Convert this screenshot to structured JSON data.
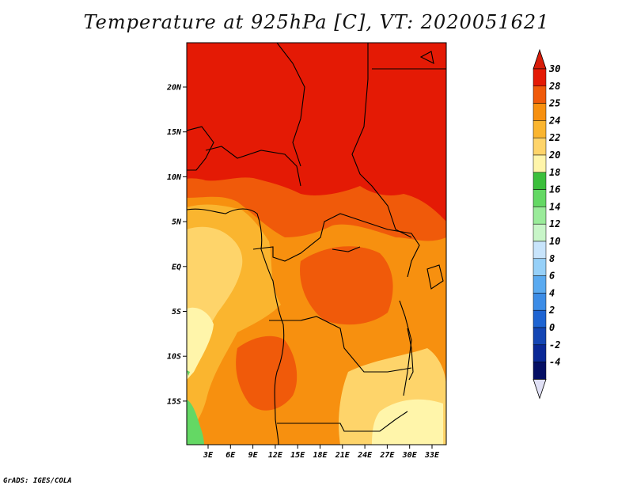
{
  "title": "Temperature at 925hPa [C], VT: 2020051621",
  "footer": "GrADS: IGES/COLA",
  "lat_labels": [
    "20N",
    "15N",
    "10N",
    "5N",
    "EQ",
    "5S",
    "10S",
    "15S"
  ],
  "lon_labels": [
    "3E",
    "6E",
    "9E",
    "12E",
    "15E",
    "18E",
    "21E",
    "24E",
    "27E",
    "30E",
    "33E"
  ],
  "colorbar": {
    "labels": [
      "30",
      "28",
      "25",
      "24",
      "22",
      "20",
      "18",
      "16",
      "14",
      "12",
      "10",
      "8",
      "6",
      "4",
      "2",
      "0",
      "-2",
      "-4"
    ],
    "colors": [
      "#e41a05",
      "#f05a0a",
      "#f7900f",
      "#fab52f",
      "#fed46a",
      "#fff5aa",
      "#3cbf3c",
      "#64d864",
      "#9aeb9a",
      "#c8f5c8",
      "#c8e4fb",
      "#96d0f8",
      "#5aaaf0",
      "#3c8ce6",
      "#1e64d2",
      "#1446b4",
      "#0a2896",
      "#050f64"
    ],
    "top_arrow_color": "#d81d0a",
    "bottom_arrow_color": "#e0e0f5"
  }
}
